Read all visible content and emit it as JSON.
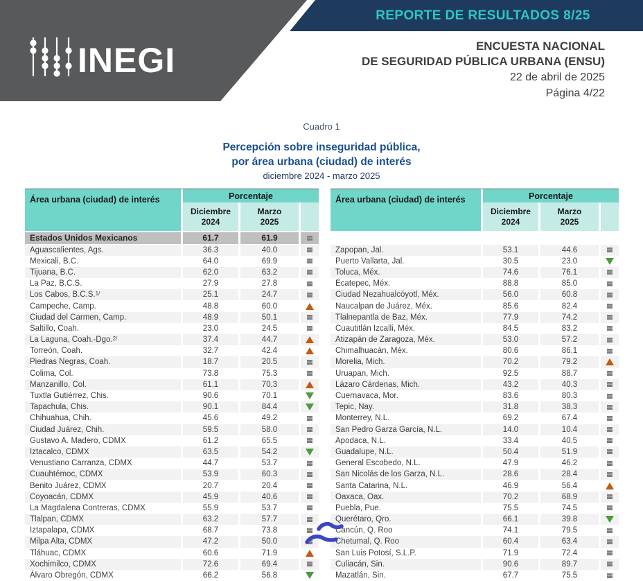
{
  "header": {
    "banner_title": "REPORTE DE RESULTADOS 8/25",
    "logo_text": "INEGI",
    "org_line1": "ENCUESTA NACIONAL",
    "org_line2": "DE SEGURIDAD PÚBLICA URBANA (ENSU)",
    "date": "22 de abril de 2025",
    "page": "Página 4/22"
  },
  "title": {
    "cuadro": "Cuadro 1",
    "line1": "Percepción sobre inseguridad pública,",
    "line2": "por área urbana (ciudad) de interés",
    "period": "diciembre 2024 - marzo 2025"
  },
  "table_headers": {
    "area": "Área urbana (ciudad) de interés",
    "pct": "Porcentaje",
    "dec_month": "Diciembre",
    "dec_year": "2024",
    "mar_month": "Marzo",
    "mar_year": "2025"
  },
  "national_row": {
    "name": "Estados Unidos Mexicanos",
    "dec": "61.7",
    "mar": "61.9",
    "trend": "eq"
  },
  "trend_colors": {
    "up": "#C45911",
    "down": "#4D9A41",
    "eq": "#7F7F7F"
  },
  "theme_colors": {
    "navy_band": "#1E3A5C",
    "banner_text": "#2BC7C5",
    "gray_band": "#58595B",
    "header_teal": "#70D6CA",
    "header_teal_light": "#C4EBE6",
    "national_gray": "#BFBFBF",
    "row_alt": "#F2F2F2",
    "annotation_blue": "#3A46C4"
  },
  "tables": {
    "left": {
      "rows": [
        {
          "name": "Aguascalientes, Ags.",
          "dec": "36.3",
          "mar": "40.0",
          "trend": "eq"
        },
        {
          "name": "Mexicali, B.C.",
          "dec": "64.0",
          "mar": "69.9",
          "trend": "eq"
        },
        {
          "name": "Tijuana, B.C.",
          "dec": "62.0",
          "mar": "63.2",
          "trend": "eq"
        },
        {
          "name": "La Paz, B.C.S.",
          "dec": "27.9",
          "mar": "27.8",
          "trend": "eq"
        },
        {
          "name": "Los Cabos, B.C.S.",
          "sup": "1/",
          "dec": "25.1",
          "mar": "24.7",
          "trend": "eq"
        },
        {
          "name": "Campeche, Camp.",
          "dec": "48.8",
          "mar": "60.0",
          "trend": "up"
        },
        {
          "name": "Ciudad del Carmen, Camp.",
          "dec": "48.9",
          "mar": "50.1",
          "trend": "eq"
        },
        {
          "name": "Saltillo, Coah.",
          "dec": "23.0",
          "mar": "24.5",
          "trend": "eq"
        },
        {
          "name": "La Laguna, Coah.-Dgo.",
          "sup": "2/",
          "dec": "37.4",
          "mar": "44.7",
          "trend": "up"
        },
        {
          "name": "Torreón, Coah.",
          "dec": "32.7",
          "mar": "42.4",
          "trend": "up"
        },
        {
          "name": "Piedras Negras, Coah.",
          "dec": "18.7",
          "mar": "20.5",
          "trend": "eq"
        },
        {
          "name": "Colima, Col.",
          "dec": "73.8",
          "mar": "75.3",
          "trend": "eq"
        },
        {
          "name": "Manzanillo, Col.",
          "dec": "61.1",
          "mar": "70.3",
          "trend": "up"
        },
        {
          "name": "Tuxtla Gutiérrez, Chis.",
          "dec": "90.6",
          "mar": "70.1",
          "trend": "down"
        },
        {
          "name": "Tapachula, Chis.",
          "dec": "90.1",
          "mar": "84.4",
          "trend": "down"
        },
        {
          "name": "Chihuahua, Chih.",
          "dec": "45.6",
          "mar": "49.2",
          "trend": "eq"
        },
        {
          "name": "Ciudad Juárez, Chih.",
          "dec": "59.5",
          "mar": "58.0",
          "trend": "eq"
        },
        {
          "name": "Gustavo A. Madero, CDMX",
          "dec": "61.2",
          "mar": "65.5",
          "trend": "eq"
        },
        {
          "name": "Iztacalco, CDMX",
          "dec": "63.5",
          "mar": "54.2",
          "trend": "down"
        },
        {
          "name": "Venustiano Carranza, CDMX",
          "dec": "44.7",
          "mar": "53.7",
          "trend": "eq"
        },
        {
          "name": "Cuauhtémoc, CDMX",
          "dec": "53.9",
          "mar": "60.3",
          "trend": "eq"
        },
        {
          "name": "Benito Juárez, CDMX",
          "dec": "20.7",
          "mar": "20.4",
          "trend": "eq"
        },
        {
          "name": "Coyoacán, CDMX",
          "dec": "45.9",
          "mar": "40.6",
          "trend": "eq"
        },
        {
          "name": "La Magdalena Contreras, CDMX",
          "dec": "55.9",
          "mar": "53.7",
          "trend": "eq"
        },
        {
          "name": "Tlalpan, CDMX",
          "dec": "63.2",
          "mar": "57.7",
          "trend": "eq"
        },
        {
          "name": "Iztapalapa, CDMX",
          "dec": "68.7",
          "mar": "73.8",
          "trend": "eq"
        },
        {
          "name": "Milpa Alta, CDMX",
          "dec": "47.2",
          "mar": "50.0",
          "trend": "eq"
        },
        {
          "name": "Tláhuac, CDMX",
          "dec": "60.6",
          "mar": "71.9",
          "trend": "up"
        },
        {
          "name": "Xochimilco, CDMX",
          "dec": "72.6",
          "mar": "69.4",
          "trend": "eq"
        },
        {
          "name": "Álvaro Obregón, CDMX",
          "dec": "66.2",
          "mar": "56.8",
          "trend": "down"
        }
      ]
    },
    "right": {
      "rows": [
        {
          "name": "Zapopan, Jal.",
          "dec": "53.1",
          "mar": "44.6",
          "trend": "eq"
        },
        {
          "name": "Puerto Vallarta, Jal.",
          "dec": "30.5",
          "mar": "23.0",
          "trend": "down"
        },
        {
          "name": "Toluca, Méx.",
          "dec": "74.6",
          "mar": "76.1",
          "trend": "eq"
        },
        {
          "name": "Ecatepec, Méx.",
          "dec": "88.8",
          "mar": "85.0",
          "trend": "eq"
        },
        {
          "name": "Ciudad Nezahualcóyotl, Méx.",
          "dec": "56.0",
          "mar": "60.8",
          "trend": "eq"
        },
        {
          "name": "Naucalpan de Juárez, Méx.",
          "dec": "85.6",
          "mar": "82.4",
          "trend": "eq"
        },
        {
          "name": "Tlalnepantla de Baz, Méx.",
          "dec": "77.9",
          "mar": "74.2",
          "trend": "eq"
        },
        {
          "name": "Cuautitlán Izcalli, Méx.",
          "dec": "84.5",
          "mar": "83.2",
          "trend": "eq"
        },
        {
          "name": "Atizapán de Zaragoza, Méx.",
          "dec": "53.0",
          "mar": "57.2",
          "trend": "eq"
        },
        {
          "name": "Chimalhuacán, Méx.",
          "dec": "80.6",
          "mar": "86.1",
          "trend": "eq"
        },
        {
          "name": "Morelia, Mich.",
          "dec": "70.2",
          "mar": "79.2",
          "trend": "up"
        },
        {
          "name": "Uruapan, Mich.",
          "dec": "92.5",
          "mar": "88.7",
          "trend": "eq"
        },
        {
          "name": "Lázaro Cárdenas, Mich.",
          "dec": "43.2",
          "mar": "40.3",
          "trend": "eq"
        },
        {
          "name": "Cuernavaca, Mor.",
          "dec": "83.6",
          "mar": "80.3",
          "trend": "eq"
        },
        {
          "name": "Tepic, Nay.",
          "dec": "31.8",
          "mar": "38.3",
          "trend": "eq"
        },
        {
          "name": "Monterrey, N.L.",
          "dec": "69.2",
          "mar": "67.4",
          "trend": "eq"
        },
        {
          "name": "San Pedro Garza García, N.L.",
          "dec": "14.0",
          "mar": "10.4",
          "trend": "eq"
        },
        {
          "name": "Apodaca, N.L.",
          "dec": "33.4",
          "mar": "40.5",
          "trend": "eq"
        },
        {
          "name": "Guadalupe, N.L.",
          "dec": "50.4",
          "mar": "51.9",
          "trend": "eq"
        },
        {
          "name": "General Escobedo, N.L.",
          "dec": "47.9",
          "mar": "46.2",
          "trend": "eq"
        },
        {
          "name": "San Nicolás de los Garza, N.L.",
          "dec": "28.6",
          "mar": "28.4",
          "trend": "eq"
        },
        {
          "name": "Santa Catarina, N.L.",
          "dec": "46.9",
          "mar": "56.4",
          "trend": "up"
        },
        {
          "name": "Oaxaca, Oax.",
          "dec": "70.2",
          "mar": "68.9",
          "trend": "eq"
        },
        {
          "name": "Puebla, Pue.",
          "dec": "75.5",
          "mar": "74.5",
          "trend": "eq"
        },
        {
          "name": "Querétaro, Qro.",
          "dec": "66.1",
          "mar": "39.8",
          "trend": "down"
        },
        {
          "name": "Cancún, Q. Roo",
          "dec": "74.1",
          "mar": "79.5",
          "trend": "eq"
        },
        {
          "name": "Chetumal, Q. Roo",
          "dec": "60.4",
          "mar": "63.4",
          "trend": "eq"
        },
        {
          "name": "San Luis Potosí, S.L.P.",
          "dec": "71.9",
          "mar": "72.4",
          "trend": "eq"
        },
        {
          "name": "Culiacán, Sin.",
          "dec": "90.6",
          "mar": "89.7",
          "trend": "eq"
        },
        {
          "name": "Mazatlán, Sin.",
          "dec": "67.7",
          "mar": "75.5",
          "trend": "eq"
        }
      ]
    }
  },
  "annotation": {
    "type": "ink-marks",
    "color": "#3A46C4",
    "targets": [
      "Cancún, Q. Roo",
      "Chetumal, Q. Roo"
    ]
  }
}
